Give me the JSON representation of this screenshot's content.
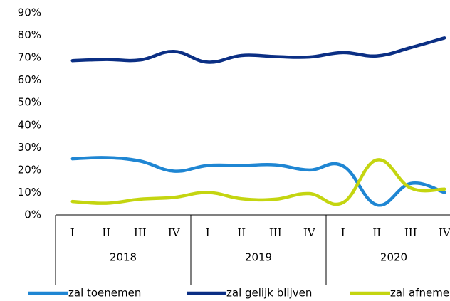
{
  "chart_data": {
    "type": "line",
    "categories": [
      "I",
      "II",
      "III",
      "IV",
      "I",
      "II",
      "III",
      "IV",
      "I",
      "II",
      "III",
      "IV"
    ],
    "groups": [
      "2018",
      "2019",
      "2020"
    ],
    "series": [
      {
        "name": "zal toenemen",
        "color": "#1f86d3",
        "values": [
          25,
          25.5,
          24,
          19.5,
          22,
          22,
          22.3,
          20,
          21.8,
          4.5,
          14,
          10
        ]
      },
      {
        "name": "zal gelijk blijven",
        "color": "#0b2f84",
        "values": [
          68.7,
          69.2,
          69,
          72.8,
          68,
          71,
          70.5,
          70.3,
          72.3,
          70.8,
          74.5,
          78.8
        ]
      },
      {
        "name": "zal afnemen",
        "color": "#c4d510",
        "values": [
          6,
          5.2,
          7,
          7.8,
          10,
          7.2,
          7,
          9.5,
          5.5,
          24.5,
          12,
          11.5
        ]
      }
    ],
    "ylim": [
      0,
      90
    ],
    "yticks": [
      {
        "value": 0,
        "label": "0%"
      },
      {
        "value": 10,
        "label": "10%"
      },
      {
        "value": 20,
        "label": "20%"
      },
      {
        "value": 30,
        "label": "30%"
      },
      {
        "value": 40,
        "label": "40%"
      },
      {
        "value": 50,
        "label": "50%"
      },
      {
        "value": 60,
        "label": "60%"
      },
      {
        "value": 70,
        "label": "70%"
      },
      {
        "value": 80,
        "label": "80%"
      },
      {
        "value": 90,
        "label": "90%"
      }
    ],
    "grid": false
  }
}
